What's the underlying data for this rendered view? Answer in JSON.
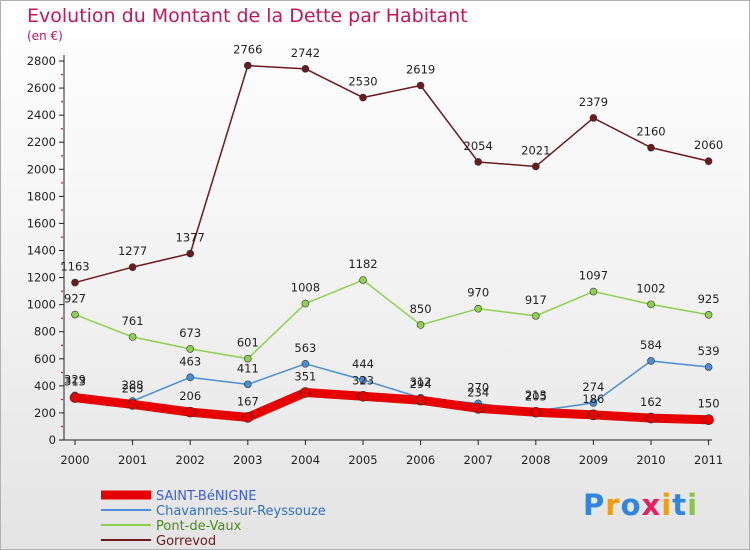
{
  "page": {
    "title": "Evolution du Montant de la Dette par Habitant",
    "unit": "(en €)",
    "logo_text": "Proxiti"
  },
  "chart_data": {
    "type": "line",
    "title": "Evolution du Montant de la Dette par Habitant",
    "subtitle": "(en €)",
    "x": [
      "2000",
      "2001",
      "2002",
      "2003",
      "2004",
      "2005",
      "2006",
      "2007",
      "2008",
      "2009",
      "2010",
      "2011"
    ],
    "yticks": [
      0,
      200,
      400,
      600,
      800,
      1000,
      1200,
      1400,
      1600,
      1800,
      2000,
      2200,
      2400,
      2600,
      2800
    ],
    "ylim": [
      0,
      2800
    ],
    "grid": false,
    "legend_position": "bottom-left",
    "series": [
      {
        "name": "Gorrevod",
        "color": "#6b1a1e",
        "thick": false,
        "values": [
          1163,
          1277,
          1377,
          2766,
          2742,
          2530,
          2619,
          2054,
          2021,
          2379,
          2160,
          2060
        ]
      },
      {
        "name": "Pont-de-Vaux",
        "color": "#8ed14f",
        "thick": false,
        "values": [
          927,
          761,
          673,
          601,
          1008,
          1182,
          850,
          970,
          917,
          1097,
          1002,
          925
        ]
      },
      {
        "name": "Chavannes-sur-Reyssouze",
        "color": "#4a8fd6",
        "thick": false,
        "values": [
          329,
          288,
          463,
          411,
          563,
          444,
          312,
          270,
          213,
          274,
          584,
          539
        ]
      },
      {
        "name": "SAINT-BéNIGNE",
        "color": "#e60000",
        "thick": true,
        "values": [
          313,
          263,
          206,
          167,
          351,
          323,
          294,
          234,
          205,
          186,
          162,
          150
        ]
      }
    ]
  }
}
